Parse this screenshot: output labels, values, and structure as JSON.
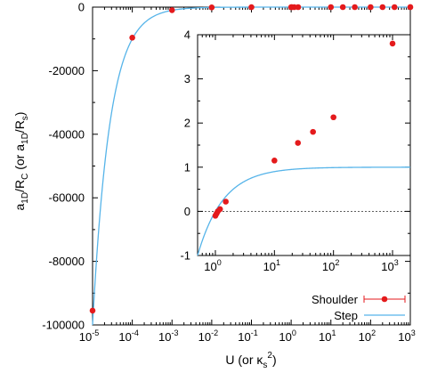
{
  "chart_data": [
    {
      "type": "scatter",
      "role": "main",
      "xlabel_base": "U (or κ",
      "xlabel_sub": "s",
      "xlabel_sup": "2",
      "xlabel_tail": ")",
      "ylabel_p1": "a",
      "ylabel_s1": "1D",
      "ylabel_p2": "/R",
      "ylabel_s2": "C",
      "ylabel_p3": " (or a",
      "ylabel_s3": "1D",
      "ylabel_p4": "/R",
      "ylabel_s4": "s",
      "ylabel_p5": ")",
      "x_scale": "log",
      "xlim": [
        1e-05,
        1000
      ],
      "ylim": [
        -100000,
        0
      ],
      "x_ticks": [
        {
          "base": "10",
          "exp": "-5",
          "value": 1e-05
        },
        {
          "base": "10",
          "exp": "-4",
          "value": 0.0001
        },
        {
          "base": "10",
          "exp": "-3",
          "value": 0.001
        },
        {
          "base": "10",
          "exp": "-2",
          "value": 0.01
        },
        {
          "base": "10",
          "exp": "-1",
          "value": 0.1
        },
        {
          "base": "10",
          "exp": "0",
          "value": 1
        },
        {
          "base": "10",
          "exp": "1",
          "value": 10
        },
        {
          "base": "10",
          "exp": "2",
          "value": 100
        },
        {
          "base": "10",
          "exp": "3",
          "value": 1000
        }
      ],
      "y_ticks": [
        {
          "label": "0",
          "value": 0
        },
        {
          "label": "-20000",
          "value": -20000
        },
        {
          "label": "-40000",
          "value": -40000
        },
        {
          "label": "-60000",
          "value": -60000
        },
        {
          "label": "-80000",
          "value": -80000
        },
        {
          "label": "-100000",
          "value": -100000
        }
      ],
      "zero_line": true,
      "legend_position": "bottom-right",
      "series": [
        {
          "name": "Shoulder",
          "kind": "points-with-errorbars",
          "color": "#e41a1c",
          "points": [
            [
              1e-05,
              -95500
            ],
            [
              0.0001,
              -9600
            ],
            [
              0.001,
              -960
            ],
            [
              0.01,
              -95
            ],
            [
              0.1,
              -9
            ],
            [
              1,
              -0.1
            ],
            [
              1.05,
              -0.05
            ],
            [
              1.2,
              0.05
            ],
            [
              1.5,
              0.2
            ],
            [
              10,
              1.15
            ],
            [
              20,
              1.55
            ],
            [
              40,
              1.8
            ],
            [
              100,
              2.12
            ],
            [
              200,
              2.5
            ],
            [
              400,
              2.7
            ],
            [
              1000,
              3.8
            ]
          ]
        },
        {
          "name": "Step",
          "kind": "line",
          "color": "#56b4e9",
          "function": "1 - 1/U"
        }
      ]
    },
    {
      "type": "scatter",
      "role": "inset",
      "x_scale": "log",
      "xlim": [
        0.5,
        2000
      ],
      "ylim": [
        -1,
        4
      ],
      "x_ticks": [
        {
          "base": "10",
          "exp": "0",
          "value": 1
        },
        {
          "base": "10",
          "exp": "1",
          "value": 10
        },
        {
          "base": "10",
          "exp": "2",
          "value": 100
        },
        {
          "base": "10",
          "exp": "3",
          "value": 1000
        }
      ],
      "y_ticks": [
        {
          "label": "-1",
          "value": -1
        },
        {
          "label": "0",
          "value": 0
        },
        {
          "label": "1",
          "value": 1
        },
        {
          "label": "2",
          "value": 2
        },
        {
          "label": "3",
          "value": 3
        },
        {
          "label": "4",
          "value": 4
        }
      ],
      "zero_line": true,
      "series": [
        {
          "name": "Shoulder",
          "color": "#e41a1c",
          "points": [
            [
              1.0,
              -0.1
            ],
            [
              1.05,
              -0.05
            ],
            [
              1.1,
              0.0
            ],
            [
              1.2,
              0.05
            ],
            [
              1.5,
              0.22
            ],
            [
              10,
              1.15
            ],
            [
              25,
              1.55
            ],
            [
              45,
              1.8
            ],
            [
              100,
              2.13
            ],
            [
              1000,
              3.8
            ]
          ]
        },
        {
          "name": "Step",
          "color": "#56b4e9",
          "function": "1 - 1/U"
        }
      ]
    }
  ]
}
